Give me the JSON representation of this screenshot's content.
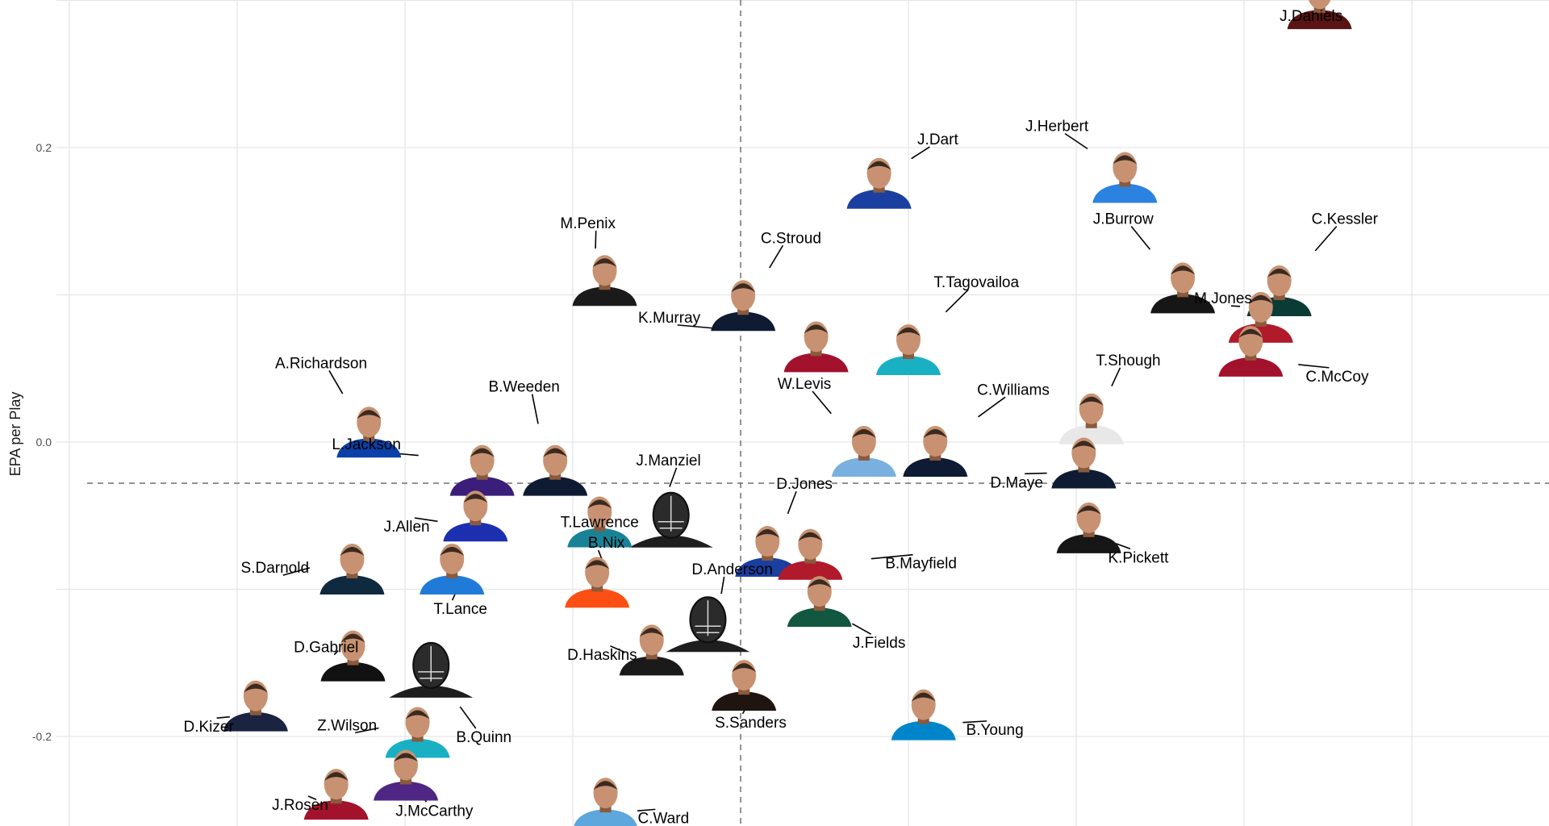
{
  "chart_data": {
    "type": "scatter",
    "title": "",
    "xlabel": "",
    "ylabel": "EPA per Play",
    "ylim": [
      -0.262,
      0.298
    ],
    "x_reference_line": 0.0,
    "y_reference_line": -0.028,
    "y_ticks": [
      {
        "value": 0.2,
        "label": "0.2"
      },
      {
        "value": 0.0,
        "label": "0.0"
      },
      {
        "value": -0.2,
        "label": "-0.2"
      }
    ],
    "grid": true,
    "legend": "none",
    "markers": "player headshots",
    "points": [
      {
        "label": "J.Daniels",
        "x": 0.69,
        "y": 0.298,
        "jersey": "#5a1414",
        "lx": 0.68,
        "ly": 0.29
      },
      {
        "label": "J.Dart",
        "x": 0.165,
        "y": 0.176,
        "jersey": "#1b3fa0",
        "lx": 0.235,
        "ly": 0.206
      },
      {
        "label": "J.Herbert",
        "x": 0.458,
        "y": 0.18,
        "jersey": "#2b82e0",
        "lx": 0.377,
        "ly": 0.215
      },
      {
        "label": "M.Penix",
        "x": -0.162,
        "y": 0.11,
        "jersey": "#1a1a1a",
        "lx": -0.182,
        "ly": 0.149
      },
      {
        "label": "C.Stroud",
        "x": 0.003,
        "y": 0.093,
        "jersey": "#0f1b33",
        "lx": 0.06,
        "ly": 0.139
      },
      {
        "label": "J.Burrow",
        "x": 0.527,
        "y": 0.105,
        "jersey": "#161616",
        "lx": 0.456,
        "ly": 0.152
      },
      {
        "label": "C.Kessler",
        "x": 0.642,
        "y": 0.103,
        "jersey": "#0b3b35",
        "lx": 0.72,
        "ly": 0.152
      },
      {
        "label": "M.Jones",
        "x": 0.62,
        "y": 0.085,
        "jersey": "#b01a2a",
        "lx": 0.575,
        "ly": 0.098
      },
      {
        "label": "K.Murray",
        "x": 0.09,
        "y": 0.065,
        "jersey": "#a3122c",
        "lx": -0.085,
        "ly": 0.085
      },
      {
        "label": "T.Tagovailoa",
        "x": 0.2,
        "y": 0.063,
        "jersey": "#1ab0c4",
        "lx": 0.281,
        "ly": 0.109
      },
      {
        "label": "C.McCoy",
        "x": 0.608,
        "y": 0.062,
        "jersey": "#a3122c",
        "lx": 0.711,
        "ly": 0.045
      },
      {
        "label": "A.Richardson",
        "x": -0.443,
        "y": 0.007,
        "jersey": "#0a40a8",
        "lx": -0.5,
        "ly": 0.054
      },
      {
        "label": "T.Shough",
        "x": 0.418,
        "y": 0.016,
        "jersey": "#e8e8e8",
        "lx": 0.462,
        "ly": 0.056
      },
      {
        "label": "B.Weeden",
        "x": -0.221,
        "y": -0.019,
        "jersey": "#0f1b33",
        "lx": -0.258,
        "ly": 0.038
      },
      {
        "label": "W.Levis",
        "x": 0.147,
        "y": -0.006,
        "jersey": "#79b0e0",
        "lx": 0.076,
        "ly": 0.04
      },
      {
        "label": "C.Williams",
        "x": 0.232,
        "y": -0.006,
        "jersey": "#0f1b33",
        "lx": 0.325,
        "ly": 0.036
      },
      {
        "label": "L.Jackson",
        "x": -0.308,
        "y": -0.019,
        "jersey": "#3a1e7a",
        "lx": -0.446,
        "ly": -0.001
      },
      {
        "label": "D.Maye",
        "x": 0.409,
        "y": -0.014,
        "jersey": "#0f1b33",
        "lx": 0.329,
        "ly": -0.027
      },
      {
        "label": "J.Manziel",
        "x": -0.083,
        "y": -0.053,
        "jersey": "#1a1a1a",
        "lx": -0.086,
        "ly": -0.012
      },
      {
        "label": "D.Jones",
        "x": 0.032,
        "y": -0.074,
        "jersey": "#1b3fa0",
        "lx": 0.076,
        "ly": -0.028
      },
      {
        "label": "J.Allen",
        "x": -0.316,
        "y": -0.05,
        "jersey": "#1b2fb0",
        "lx": -0.398,
        "ly": -0.057
      },
      {
        "label": "B.Nix",
        "x": -0.171,
        "y": -0.095,
        "jersey": "#fb4f14",
        "lx": -0.16,
        "ly": -0.068
      },
      {
        "label": "T.Lawrence",
        "x": -0.168,
        "y": -0.054,
        "jersey": "#1a8296",
        "lx": -0.168,
        "ly": -0.054
      },
      {
        "label": "B.Mayfield",
        "x": 0.083,
        "y": -0.076,
        "jersey": "#b01a2a",
        "lx": 0.215,
        "ly": -0.082
      },
      {
        "label": "K.Pickett",
        "x": 0.415,
        "y": -0.058,
        "jersey": "#161616",
        "lx": 0.474,
        "ly": -0.078
      },
      {
        "label": "S.Darnold",
        "x": -0.463,
        "y": -0.086,
        "jersey": "#0f2a3f",
        "lx": -0.555,
        "ly": -0.085
      },
      {
        "label": "T.Lance",
        "x": -0.344,
        "y": -0.086,
        "jersey": "#1f7ad8",
        "lx": -0.334,
        "ly": -0.113
      },
      {
        "label": "D.Anderson",
        "x": -0.039,
        "y": -0.124,
        "jersey": "#1a1a1a",
        "lx": -0.01,
        "ly": -0.086
      },
      {
        "label": "J.Fields",
        "x": 0.094,
        "y": -0.108,
        "jersey": "#125740",
        "lx": 0.165,
        "ly": -0.136
      },
      {
        "label": "D.Gabriel",
        "x": -0.462,
        "y": -0.145,
        "jersey": "#111111",
        "lx": -0.494,
        "ly": -0.139
      },
      {
        "label": "B.Quinn",
        "x": -0.369,
        "y": -0.155,
        "jersey": "#111111",
        "lx": -0.306,
        "ly": -0.2
      },
      {
        "label": "D.Haskins",
        "x": -0.106,
        "y": -0.141,
        "jersey": "#1a1a1a",
        "lx": -0.165,
        "ly": -0.144
      },
      {
        "label": "S.Sanders",
        "x": 0.004,
        "y": -0.165,
        "jersey": "#1f1410",
        "lx": 0.012,
        "ly": -0.19
      },
      {
        "label": "B.Young",
        "x": 0.218,
        "y": -0.185,
        "jersey": "#0085ca",
        "lx": 0.303,
        "ly": -0.195
      },
      {
        "label": "D.Kizer",
        "x": -0.578,
        "y": -0.179,
        "jersey": "#1a2340",
        "lx": -0.634,
        "ly": -0.193
      },
      {
        "label": "Z.Wilson",
        "x": -0.385,
        "y": -0.197,
        "jersey": "#1ab0c4",
        "lx": -0.469,
        "ly": -0.192
      },
      {
        "label": "J.Rosen",
        "x": -0.482,
        "y": -0.239,
        "jersey": "#a3122c",
        "lx": -0.525,
        "ly": -0.246
      },
      {
        "label": "J.McCarthy",
        "x": -0.399,
        "y": -0.226,
        "jersey": "#4f2683",
        "lx": -0.365,
        "ly": -0.25
      },
      {
        "label": "C.Ward",
        "x": -0.161,
        "y": -0.245,
        "jersey": "#5ea7dd",
        "lx": -0.092,
        "ly": -0.255
      }
    ]
  }
}
